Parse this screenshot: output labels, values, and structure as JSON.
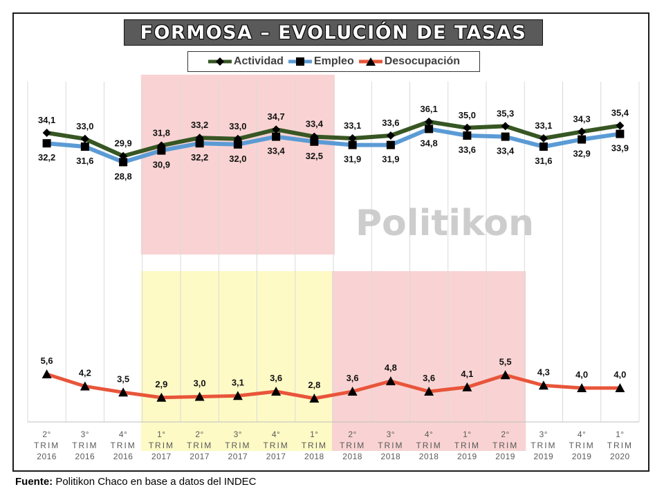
{
  "source": {
    "label": "Fuente:",
    "text": " Politikon Chaco en base a datos del INDEC"
  },
  "chart_data": {
    "type": "line",
    "title": "FORMOSA – EVOLUCIÓN DE TASAS",
    "watermark": "Politikon",
    "legend_position": "top",
    "grid": "vertical",
    "categories": [
      [
        "2°",
        "TRIM",
        "2016"
      ],
      [
        "3°",
        "TRIM",
        "2016"
      ],
      [
        "4°",
        "TRIM",
        "2016"
      ],
      [
        "1°",
        "TRIM",
        "2017"
      ],
      [
        "2°",
        "TRIM",
        "2017"
      ],
      [
        "3°",
        "TRIM",
        "2017"
      ],
      [
        "4°",
        "TRIM",
        "2017"
      ],
      [
        "1°",
        "TRIM",
        "2018"
      ],
      [
        "2°",
        "TRIM",
        "2018"
      ],
      [
        "3°",
        "TRIM",
        "2018"
      ],
      [
        "4°",
        "TRIM",
        "2018"
      ],
      [
        "1°",
        "TRIM",
        "2019"
      ],
      [
        "2°",
        "TRIM",
        "2019"
      ],
      [
        "3°",
        "TRIM",
        "2019"
      ],
      [
        "4°",
        "TRIM",
        "2019"
      ],
      [
        "1°",
        "TRIM",
        "2020"
      ]
    ],
    "series": [
      {
        "name": "Actividad",
        "color": "#375623",
        "marker": "diamond",
        "values": [
          34.1,
          33.0,
          29.9,
          31.8,
          33.2,
          33.0,
          34.7,
          33.4,
          33.1,
          33.6,
          36.1,
          35.0,
          35.3,
          33.1,
          34.3,
          35.4
        ],
        "labels": [
          "34,1",
          "33,0",
          "29,9",
          "31,8",
          "33,2",
          "33,0",
          "34,7",
          "33,4",
          "33,1",
          "33,6",
          "36,1",
          "35,0",
          "35,3",
          "33,1",
          "34,3",
          "35,4"
        ]
      },
      {
        "name": "Empleo",
        "color": "#5b9bd5",
        "marker": "square",
        "values": [
          32.2,
          31.6,
          28.8,
          30.9,
          32.2,
          32.0,
          33.4,
          32.5,
          31.9,
          31.9,
          34.8,
          33.6,
          33.4,
          31.6,
          32.9,
          33.9
        ],
        "labels": [
          "32,2",
          "31,6",
          "28,8",
          "30,9",
          "32,2",
          "32,0",
          "33,4",
          "32,5",
          "31,9",
          "31,9",
          "34,8",
          "33,6",
          "33,4",
          "31,6",
          "32,9",
          "33,9"
        ]
      },
      {
        "name": "Desocupación",
        "color": "#e8553a",
        "marker": "triangle",
        "values": [
          5.6,
          4.2,
          3.5,
          2.9,
          3.0,
          3.1,
          3.6,
          2.8,
          3.6,
          4.8,
          3.6,
          4.1,
          5.5,
          4.3,
          4.0,
          4.0
        ],
        "labels": [
          "5,6",
          "4,2",
          "3,5",
          "2,9",
          "3,0",
          "3,1",
          "3,6",
          "2,8",
          "3,6",
          "4,8",
          "3,6",
          "4,1",
          "5,5",
          "4,3",
          "4,0",
          "4,0"
        ]
      }
    ],
    "highlights": [
      {
        "from_index": 3,
        "to_index": 7,
        "band": "upper",
        "color": "#f9d3d3"
      },
      {
        "from_index": 3,
        "to_index": 7,
        "band": "lower",
        "color": "#fdfac5"
      },
      {
        "from_index": 8,
        "to_index": 12,
        "band": "lower",
        "color": "#f9d3d3"
      }
    ]
  }
}
